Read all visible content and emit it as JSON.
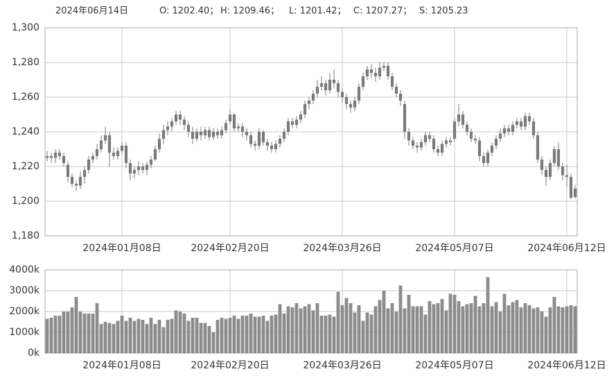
{
  "header": {
    "date": "2024年06月14日",
    "items": [
      "O: 1202.40；",
      "H: 1209.46；",
      "L: 1201.42；",
      "C: 1207.27；",
      "S: 1205.23"
    ]
  },
  "chart_data": [
    {
      "type": "candlestick",
      "color": "#7a7a7a",
      "grid": true,
      "categories": [
        null,
        null,
        null,
        null,
        null,
        null,
        null,
        null,
        null,
        null,
        null,
        null,
        null,
        null,
        null,
        null,
        null,
        null,
        "2024年01月08日",
        null,
        null,
        null,
        null,
        null,
        null,
        null,
        null,
        null,
        null,
        null,
        null,
        null,
        null,
        null,
        null,
        null,
        null,
        null,
        null,
        null,
        null,
        null,
        null,
        null,
        "2024年02月20日",
        null,
        null,
        null,
        null,
        null,
        null,
        null,
        null,
        null,
        null,
        null,
        null,
        null,
        null,
        null,
        null,
        null,
        null,
        null,
        null,
        null,
        null,
        null,
        null,
        null,
        null,
        "2024年03月26日",
        null,
        null,
        null,
        null,
        null,
        null,
        null,
        null,
        null,
        null,
        null,
        null,
        null,
        null,
        null,
        null,
        null,
        null,
        null,
        null,
        null,
        null,
        null,
        null,
        null,
        null,
        "2024年05月07日",
        null,
        null,
        null,
        null,
        null,
        null,
        null,
        null,
        null,
        null,
        null,
        null,
        null,
        null,
        null,
        null,
        null,
        null,
        null,
        null,
        null,
        null,
        null,
        null,
        null,
        null,
        "2024年06月12日",
        null,
        null
      ],
      "open": [
        1225,
        1226,
        1225,
        1228,
        1226,
        1221,
        1214,
        1210,
        1209,
        1214,
        1218,
        1224,
        1226,
        1230,
        1235,
        1238,
        1228,
        1226,
        1229,
        1232,
        1222,
        1216,
        1218,
        1220,
        1218,
        1221,
        1224,
        1230,
        1236,
        1241,
        1243,
        1246,
        1250,
        1247,
        1244,
        1240,
        1236,
        1240,
        1238,
        1241,
        1237,
        1240,
        1238,
        1241,
        1246,
        1250,
        1242,
        1243,
        1240,
        1238,
        1233,
        1232,
        1240,
        1234,
        1232,
        1230,
        1233,
        1236,
        1240,
        1246,
        1244,
        1247,
        1250,
        1256,
        1258,
        1262,
        1266,
        1268,
        1264,
        1270,
        1268,
        1263,
        1260,
        1256,
        1254,
        1258,
        1266,
        1272,
        1276,
        1274,
        1272,
        1277,
        1278,
        1272,
        1266,
        1262,
        1256,
        1240,
        1235,
        1232,
        1231,
        1234,
        1238,
        1236,
        1230,
        1228,
        1233,
        1235,
        1236,
        1246,
        1250,
        1244,
        1240,
        1236,
        1235,
        1226,
        1222,
        1228,
        1232,
        1236,
        1239,
        1242,
        1240,
        1244,
        1246,
        1243,
        1249,
        1246,
        1238,
        1224,
        1218,
        1214,
        1222,
        1230,
        1220,
        1215,
        1214,
        1202.4
      ],
      "high": [
        1229,
        1228,
        1230,
        1230,
        1228,
        1223,
        1216,
        1212,
        1217,
        1220,
        1226,
        1228,
        1233,
        1238,
        1243,
        1240,
        1231,
        1231,
        1234,
        1234,
        1224,
        1220,
        1223,
        1222,
        1223,
        1226,
        1232,
        1239,
        1244,
        1246,
        1248,
        1252,
        1252,
        1249,
        1246,
        1243,
        1242,
        1243,
        1243,
        1243,
        1242,
        1242,
        1243,
        1247,
        1253,
        1251,
        1245,
        1245,
        1242,
        1240,
        1235,
        1242,
        1241,
        1236,
        1234,
        1235,
        1238,
        1242,
        1248,
        1248,
        1249,
        1252,
        1258,
        1260,
        1264,
        1270,
        1272,
        1270,
        1274,
        1276,
        1270,
        1265,
        1262,
        1258,
        1260,
        1268,
        1274,
        1278,
        1279,
        1277,
        1280,
        1280,
        1280,
        1274,
        1268,
        1264,
        1258,
        1242,
        1237,
        1234,
        1236,
        1240,
        1240,
        1238,
        1232,
        1235,
        1237,
        1237,
        1248,
        1256,
        1252,
        1246,
        1242,
        1238,
        1237,
        1228,
        1230,
        1234,
        1238,
        1242,
        1244,
        1244,
        1246,
        1248,
        1248,
        1251,
        1251,
        1248,
        1240,
        1226,
        1220,
        1224,
        1232,
        1234,
        1222,
        1221,
        1216,
        1209.46
      ],
      "low": [
        1223,
        1222,
        1222,
        1224,
        1220,
        1211,
        1208,
        1206,
        1207,
        1210,
        1216,
        1222,
        1224,
        1228,
        1233,
        1220,
        1224,
        1224,
        1227,
        1219,
        1212,
        1213,
        1215,
        1216,
        1215,
        1219,
        1223,
        1228,
        1233,
        1238,
        1240,
        1244,
        1244,
        1241,
        1237,
        1233,
        1234,
        1235,
        1236,
        1235,
        1235,
        1236,
        1236,
        1239,
        1244,
        1240,
        1240,
        1237,
        1235,
        1231,
        1229,
        1230,
        1232,
        1229,
        1228,
        1228,
        1231,
        1234,
        1238,
        1242,
        1242,
        1245,
        1248,
        1253,
        1256,
        1260,
        1264,
        1261,
        1262,
        1265,
        1260,
        1257,
        1253,
        1251,
        1252,
        1256,
        1264,
        1270,
        1271,
        1269,
        1270,
        1275,
        1270,
        1264,
        1260,
        1255,
        1236,
        1232,
        1230,
        1228,
        1229,
        1232,
        1234,
        1228,
        1226,
        1226,
        1231,
        1232,
        1234,
        1243,
        1242,
        1238,
        1234,
        1233,
        1223,
        1220,
        1220,
        1226,
        1230,
        1234,
        1237,
        1238,
        1238,
        1242,
        1241,
        1241,
        1244,
        1236,
        1222,
        1215,
        1209,
        1212,
        1220,
        1218,
        1212,
        1208,
        1201,
        1201.42
      ],
      "close": [
        1226,
        1225,
        1228,
        1226,
        1222,
        1214,
        1210,
        1209,
        1214,
        1218,
        1224,
        1226,
        1230,
        1235,
        1238,
        1228,
        1226,
        1229,
        1232,
        1222,
        1216,
        1218,
        1220,
        1218,
        1221,
        1224,
        1230,
        1236,
        1241,
        1243,
        1246,
        1250,
        1247,
        1244,
        1240,
        1236,
        1240,
        1238,
        1241,
        1237,
        1240,
        1238,
        1241,
        1245,
        1250,
        1242,
        1243,
        1240,
        1238,
        1233,
        1232,
        1240,
        1234,
        1232,
        1230,
        1233,
        1236,
        1240,
        1246,
        1244,
        1247,
        1250,
        1256,
        1258,
        1262,
        1266,
        1268,
        1264,
        1270,
        1268,
        1263,
        1260,
        1256,
        1254,
        1258,
        1266,
        1272,
        1276,
        1274,
        1272,
        1277,
        1278,
        1272,
        1266,
        1262,
        1258,
        1240,
        1235,
        1232,
        1231,
        1234,
        1238,
        1236,
        1230,
        1228,
        1233,
        1235,
        1234,
        1246,
        1250,
        1244,
        1240,
        1236,
        1235,
        1226,
        1222,
        1228,
        1232,
        1236,
        1239,
        1242,
        1240,
        1244,
        1246,
        1243,
        1249,
        1246,
        1238,
        1224,
        1218,
        1214,
        1222,
        1230,
        1220,
        1215,
        1214,
        1202,
        1207.27
      ],
      "ylim": [
        1180,
        1300
      ],
      "yticks": [
        {
          "value": 1180,
          "label": "1,180"
        },
        {
          "value": 1200,
          "label": "1,200"
        },
        {
          "value": 1220,
          "label": "1,220"
        },
        {
          "value": 1240,
          "label": "1,240"
        },
        {
          "value": 1260,
          "label": "1,260"
        },
        {
          "value": 1280,
          "label": "1,280"
        },
        {
          "value": 1300,
          "label": "1,300"
        }
      ]
    },
    {
      "type": "bar",
      "color": "#8c8c8c",
      "grid": true,
      "categories": [
        null,
        null,
        null,
        null,
        null,
        null,
        null,
        null,
        null,
        null,
        null,
        null,
        null,
        null,
        null,
        null,
        null,
        null,
        "2024年01月08日",
        null,
        null,
        null,
        null,
        null,
        null,
        null,
        null,
        null,
        null,
        null,
        null,
        null,
        null,
        null,
        null,
        null,
        null,
        null,
        null,
        null,
        null,
        null,
        null,
        null,
        "2024年02月20日",
        null,
        null,
        null,
        null,
        null,
        null,
        null,
        null,
        null,
        null,
        null,
        null,
        null,
        null,
        null,
        null,
        null,
        null,
        null,
        null,
        null,
        null,
        null,
        null,
        null,
        null,
        "2024年03月26日",
        null,
        null,
        null,
        null,
        null,
        null,
        null,
        null,
        null,
        null,
        null,
        null,
        null,
        null,
        null,
        null,
        null,
        null,
        null,
        null,
        null,
        null,
        null,
        null,
        null,
        null,
        "2024年05月07日",
        null,
        null,
        null,
        null,
        null,
        null,
        null,
        null,
        null,
        null,
        null,
        null,
        null,
        null,
        null,
        null,
        null,
        null,
        null,
        null,
        null,
        null,
        null,
        null,
        null,
        null,
        "2024年06月12日",
        null,
        null
      ],
      "values": [
        1650,
        1700,
        1800,
        1800,
        2000,
        2000,
        2200,
        2700,
        2000,
        1900,
        1900,
        1900,
        2400,
        1400,
        1500,
        1450,
        1400,
        1550,
        1800,
        1550,
        1700,
        1550,
        1650,
        1600,
        1400,
        1700,
        1400,
        1600,
        1250,
        1600,
        1650,
        2050,
        2000,
        1900,
        1550,
        1700,
        1700,
        1450,
        1450,
        1300,
        1000,
        1600,
        1700,
        1650,
        1700,
        1800,
        1650,
        1800,
        1800,
        1900,
        1750,
        1750,
        1800,
        1550,
        1800,
        1850,
        2350,
        1900,
        2250,
        2200,
        2400,
        2150,
        2250,
        2350,
        2050,
        2400,
        1800,
        1800,
        1850,
        1750,
        2950,
        2300,
        2650,
        2400,
        1950,
        2300,
        1550,
        1950,
        1850,
        2250,
        2550,
        3000,
        2150,
        2400,
        2000,
        3250,
        2150,
        2800,
        2250,
        2250,
        2250,
        1850,
        2500,
        2350,
        2400,
        2600,
        2050,
        2850,
        2800,
        2500,
        2250,
        2350,
        2400,
        2750,
        2250,
        2400,
        3650,
        2250,
        2450,
        2000,
        2850,
        2300,
        2450,
        2550,
        2200,
        2400,
        2300,
        2150,
        2200,
        2000,
        1750,
        2200,
        2700,
        2250,
        2200,
        2250,
        2300,
        2250
      ],
      "ylim": [
        0,
        4000
      ],
      "yticks": [
        {
          "value": 0,
          "label": "0k"
        },
        {
          "value": 1000,
          "label": "1000k"
        },
        {
          "value": 2000,
          "label": "2000k"
        },
        {
          "value": 3000,
          "label": "3000k"
        },
        {
          "value": 4000,
          "label": "4000k"
        }
      ]
    }
  ]
}
